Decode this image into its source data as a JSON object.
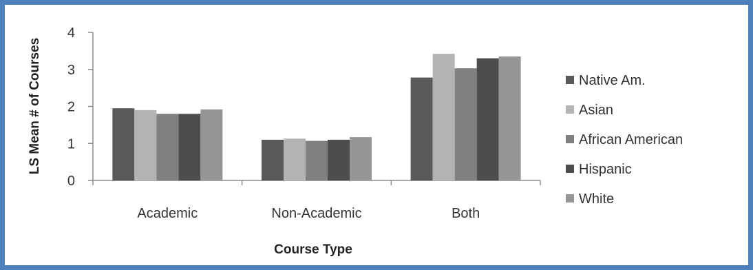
{
  "chart_data": {
    "type": "bar",
    "title": "",
    "xlabel": "Course Type",
    "ylabel": "LS Mean # of Courses",
    "ylim": [
      0,
      4
    ],
    "yticks": [
      "0",
      "1",
      "2",
      "3",
      "4"
    ],
    "grid": false,
    "legend_position": "right",
    "categories": [
      "Academic",
      "Non-Academic",
      "Both"
    ],
    "series": [
      {
        "name": "Native Am.",
        "color": "#595959",
        "values": [
          1.95,
          1.1,
          2.78
        ]
      },
      {
        "name": "Asian",
        "color": "#b3b3b3",
        "values": [
          1.9,
          1.13,
          3.42
        ]
      },
      {
        "name": "African American",
        "color": "#808080",
        "values": [
          1.8,
          1.07,
          3.03
        ]
      },
      {
        "name": "Hispanic",
        "color": "#4d4d4d",
        "values": [
          1.8,
          1.1,
          3.3
        ]
      },
      {
        "name": "White",
        "color": "#969696",
        "values": [
          1.92,
          1.17,
          3.35
        ]
      }
    ]
  }
}
